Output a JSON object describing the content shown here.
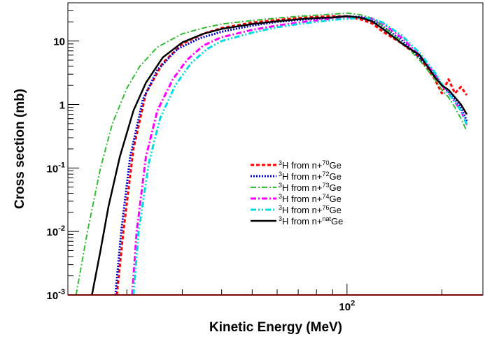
{
  "chart_data": {
    "type": "line",
    "xlabel": "Kinetic Energy (MeV)",
    "ylabel": "Cross section (mb)",
    "xscale": "log",
    "yscale": "log",
    "xlim": [
      13,
      270
    ],
    "ylim": [
      0.001,
      40
    ],
    "grid": false,
    "legend_position": "center-right",
    "x_ticks": [
      {
        "value": 100,
        "base": "10",
        "exp": "2"
      }
    ],
    "y_ticks": [
      {
        "value": 0.001,
        "base": "10",
        "exp": "-3"
      },
      {
        "value": 0.01,
        "base": "10",
        "exp": "-2"
      },
      {
        "value": 0.1,
        "base": "10",
        "exp": "-1"
      },
      {
        "value": 1,
        "text": "1"
      },
      {
        "value": 10,
        "text": "10"
      }
    ],
    "series": [
      {
        "name_parts": {
          "sup1": "3",
          "main": "H from n+",
          "sup2": "70",
          "tail": "Ge"
        },
        "color": "#ff0000",
        "dash": "5,3",
        "width": 3,
        "x": [
          18.6,
          19.5,
          21,
          23,
          26,
          30,
          35,
          40,
          50,
          60,
          70,
          80,
          90,
          100,
          110,
          120,
          130,
          150,
          170,
          190,
          200,
          210,
          220,
          230,
          240
        ],
        "y": [
          0.001,
          0.01,
          0.2,
          1.5,
          4.5,
          9,
          13,
          16,
          19.5,
          21.5,
          23,
          24,
          24.5,
          24.5,
          22,
          19,
          14,
          9,
          5.5,
          2.5,
          1.5,
          2.5,
          1.5,
          1.9,
          1.4
        ]
      },
      {
        "name_parts": {
          "sup1": "3",
          "main": "H from n+",
          "sup2": "72",
          "tail": "Ge"
        },
        "color": "#0000cc",
        "dash": "2,2",
        "width": 3,
        "x": [
          18.4,
          19.2,
          20.5,
          22.5,
          25,
          29,
          34,
          40,
          50,
          60,
          70,
          80,
          90,
          100,
          110,
          120,
          130,
          150,
          170,
          190,
          200,
          210,
          220,
          230,
          240
        ],
        "y": [
          0.001,
          0.01,
          0.15,
          1.2,
          3.5,
          7.5,
          11,
          14,
          17.5,
          20,
          21.5,
          22.5,
          23.5,
          24.5,
          24,
          22,
          17,
          10,
          5.5,
          3,
          2,
          1.6,
          1.2,
          0.9,
          0.55
        ]
      },
      {
        "name_parts": {
          "sup1": "3",
          "main": "H from n+",
          "sup2": "73",
          "tail": "Ge"
        },
        "color": "#33bb33",
        "dash": "8,3,2,3",
        "width": 2,
        "x": [
          13.8,
          15,
          16.5,
          18,
          20,
          22,
          25,
          30,
          35,
          40,
          50,
          60,
          70,
          80,
          90,
          100,
          110,
          120,
          130,
          150,
          170,
          190,
          200,
          210,
          220,
          230,
          240
        ],
        "y": [
          0.001,
          0.01,
          0.1,
          0.5,
          1.8,
          4,
          8,
          13,
          16,
          18.5,
          21,
          23,
          24.5,
          25.5,
          26.5,
          27.5,
          26,
          23,
          17,
          9.5,
          5,
          2.5,
          1.7,
          1.3,
          0.9,
          0.6,
          0.38
        ]
      },
      {
        "name_parts": {
          "sup1": "3",
          "main": "H from n+",
          "sup2": "74",
          "tail": "Ge"
        },
        "color": "#ff00ff",
        "dash": "8,3,2,3",
        "width": 3,
        "x": [
          20.8,
          21.5,
          23,
          25,
          28,
          31,
          35,
          40,
          50,
          60,
          70,
          80,
          90,
          100,
          110,
          120,
          130,
          150,
          170,
          190,
          200,
          210,
          220,
          230,
          240
        ],
        "y": [
          0.001,
          0.01,
          0.15,
          0.8,
          2.5,
          5,
          8.5,
          11.5,
          15,
          17.5,
          19.5,
          21,
          22.5,
          23.5,
          23.5,
          22.5,
          19,
          11,
          6,
          3,
          2,
          1.5,
          1.1,
          0.8,
          0.48
        ]
      },
      {
        "name_parts": {
          "sup1": "3",
          "main": "H from n+",
          "sup2": "76",
          "tail": "Ge"
        },
        "color": "#00dddd",
        "dash": "8,3,2,3,2,3",
        "width": 3,
        "x": [
          21,
          21.8,
          23.5,
          25.5,
          28.5,
          32,
          36,
          40,
          50,
          60,
          70,
          80,
          90,
          100,
          110,
          120,
          130,
          150,
          170,
          190,
          200,
          210,
          220,
          230,
          240
        ],
        "y": [
          0.001,
          0.01,
          0.12,
          0.6,
          2,
          4.5,
          7.5,
          10,
          13.5,
          16.5,
          18.5,
          20,
          21.5,
          22.5,
          23,
          22.5,
          19.5,
          12,
          6.5,
          3.2,
          2.1,
          1.5,
          1.1,
          0.8,
          0.48
        ]
      },
      {
        "name_parts": {
          "sup1": "3",
          "main": "H from n+",
          "sup2": "nat",
          "tail": "Ge"
        },
        "color": "#000000",
        "dash": "",
        "width": 2.5,
        "x": [
          15.5,
          16.5,
          17.5,
          19,
          21,
          23,
          26,
          30,
          35,
          40,
          50,
          60,
          70,
          80,
          90,
          100,
          110,
          120,
          130,
          150,
          170,
          190,
          200,
          210,
          220,
          230,
          240
        ],
        "y": [
          0.001,
          0.005,
          0.025,
          0.15,
          0.8,
          2.2,
          5.5,
          9.5,
          13,
          15.5,
          18.5,
          20.5,
          22,
          23,
          23.5,
          24.5,
          23.5,
          20.5,
          15.5,
          9,
          6,
          2.7,
          2,
          1.7,
          1.3,
          1,
          0.7
        ]
      }
    ]
  }
}
